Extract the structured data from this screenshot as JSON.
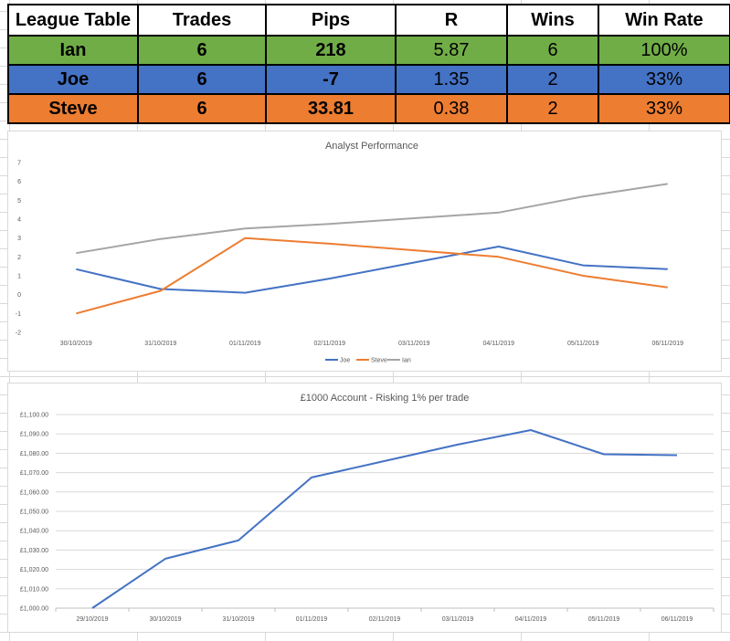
{
  "league_table": {
    "headers": [
      "League Table",
      "Trades",
      "Pips",
      "R",
      "Wins",
      "Win Rate"
    ],
    "rows": [
      {
        "name": "Ian",
        "trades": "6",
        "pips": "218",
        "r": "5.87",
        "wins": "6",
        "win_rate": "100%",
        "color": "#70ad47"
      },
      {
        "name": "Joe",
        "trades": "6",
        "pips": "-7",
        "r": "1.35",
        "wins": "2",
        "win_rate": "33%",
        "color": "#4472c4"
      },
      {
        "name": "Steve",
        "trades": "6",
        "pips": "33.81",
        "r": "0.38",
        "wins": "2",
        "win_rate": "33%",
        "color": "#ed7d31"
      }
    ]
  },
  "chart_data": [
    {
      "type": "line",
      "title": "Analyst Performance",
      "categories": [
        "30/10/2019",
        "31/10/2019",
        "01/11/2019",
        "02/11/2019",
        "03/11/2019",
        "04/11/2019",
        "05/11/2019",
        "06/11/2019"
      ],
      "y_ticks": [
        "7",
        "6",
        "5",
        "4",
        "3",
        "2",
        "1",
        "0",
        "-1",
        "-2"
      ],
      "ylim": [
        -2,
        7
      ],
      "grid": false,
      "legend_position": "bottom",
      "series": [
        {
          "name": "Joe",
          "color": "#4472c4",
          "values": [
            1.35,
            0.3,
            0.1,
            0.85,
            1.7,
            2.55,
            1.55,
            1.35
          ]
        },
        {
          "name": "Steve",
          "color": "#ed7d31",
          "values": [
            -1,
            0.2,
            3.0,
            2.7,
            2.35,
            2.0,
            1.0,
            0.38
          ]
        },
        {
          "name": "Ian",
          "color": "#a5a5a5",
          "values": [
            2.2,
            2.95,
            3.5,
            3.75,
            4.05,
            4.35,
            5.2,
            5.87
          ]
        }
      ]
    },
    {
      "type": "line",
      "title": "£1000 Account - Risking 1% per trade",
      "categories": [
        "29/10/2019",
        "30/10/2019",
        "31/10/2019",
        "01/11/2019",
        "02/11/2019",
        "03/11/2019",
        "04/11/2019",
        "05/11/2019",
        "06/11/2019"
      ],
      "y_ticks": [
        "£1,100.00",
        "£1,090.00",
        "£1,080.00",
        "£1,070.00",
        "£1,060.00",
        "£1,050.00",
        "£1,040.00",
        "£1,030.00",
        "£1,020.00",
        "£1,010.00",
        "£1,000.00"
      ],
      "ylim": [
        1000,
        1100
      ],
      "grid": true,
      "series": [
        {
          "color": "#4472c4",
          "values": [
            1000,
            1025.5,
            1035,
            1067.5,
            1076,
            1084.5,
            1092,
            1079.5,
            1079
          ]
        }
      ]
    }
  ]
}
